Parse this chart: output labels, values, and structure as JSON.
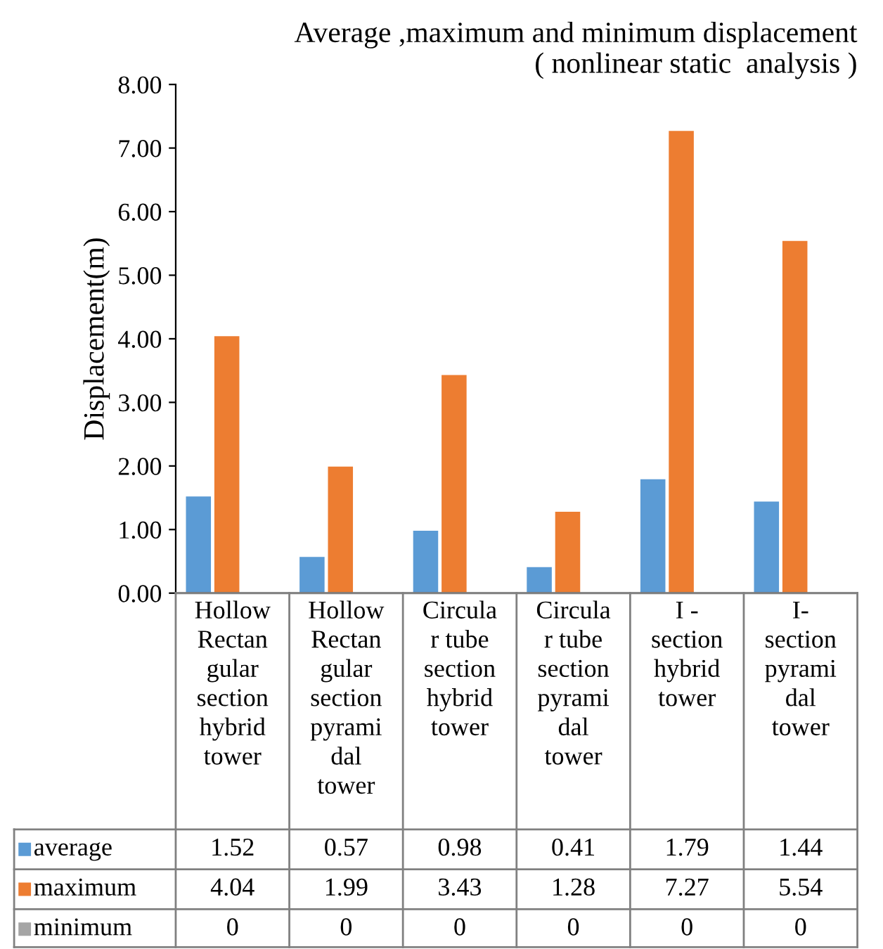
{
  "chart_data": {
    "type": "bar",
    "title": "Average ,maximum and minimum displacement\n( nonlinear static  analysis )",
    "ylabel": "Displacement(m)",
    "categories": [
      "Hollow\nRectan\ngular\nsection\nhybrid\ntower",
      "Hollow\nRectan\ngular\nsection\npyrami\ndal\ntower",
      "Circula\nr tube\nsection\nhybrid\ntower",
      "Circula\nr tube\nsection\npyrami\ndal\ntower",
      "I -\nsection\nhybrid\ntower",
      "I-\nsection\npyrami\ndal\ntower"
    ],
    "series": [
      {
        "name": "average",
        "color": "#5b9bd5",
        "values": [
          1.52,
          0.57,
          0.98,
          0.41,
          1.79,
          1.44
        ]
      },
      {
        "name": "maximum",
        "color": "#ed7d31",
        "values": [
          4.04,
          1.99,
          3.43,
          1.28,
          7.27,
          5.54
        ]
      },
      {
        "name": "minimum",
        "color": "#a5a5a5",
        "values": [
          0,
          0,
          0,
          0,
          0,
          0
        ]
      }
    ],
    "ylim": [
      0,
      8
    ],
    "yticks": [
      {
        "value": 0,
        "label": "0.00"
      },
      {
        "value": 1,
        "label": "1.00"
      },
      {
        "value": 2,
        "label": "2.00"
      },
      {
        "value": 3,
        "label": "3.00"
      },
      {
        "value": 4,
        "label": "4.00"
      },
      {
        "value": 5,
        "label": "5.00"
      },
      {
        "value": 6,
        "label": "6.00"
      },
      {
        "value": 7,
        "label": "7.00"
      },
      {
        "value": 8,
        "label": "8.00"
      }
    ],
    "grid": false,
    "legend": "bottom",
    "data_labels": true
  }
}
